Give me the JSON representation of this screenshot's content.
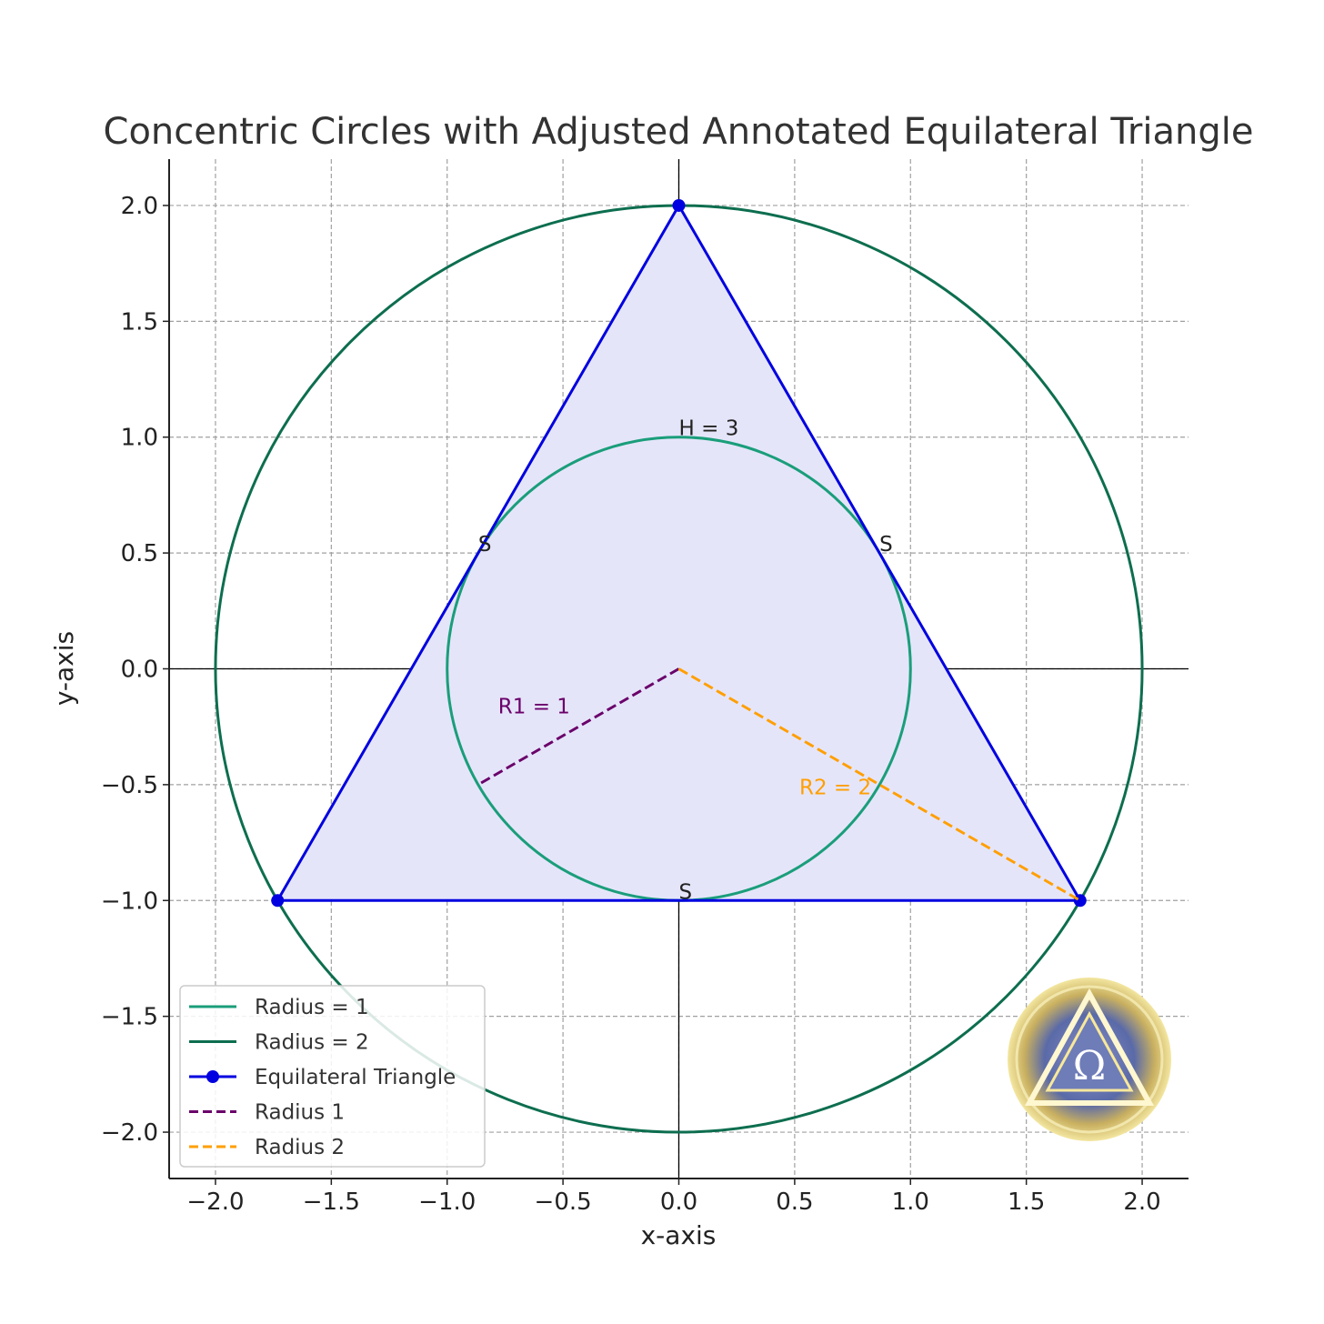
{
  "chart_data": {
    "type": "line",
    "title": "Concentric Circles with Adjusted Annotated Equilateral Triangle",
    "xlabel": "x-axis",
    "ylabel": "y-axis",
    "xlim": [
      -2.2,
      2.2
    ],
    "ylim": [
      -2.2,
      2.2
    ],
    "x_ticks": [
      -2.0,
      -1.5,
      -1.0,
      -0.5,
      0.0,
      0.5,
      1.0,
      1.5,
      2.0
    ],
    "y_ticks": [
      -2.0,
      -1.5,
      -1.0,
      -0.5,
      0.0,
      0.5,
      1.0,
      1.5,
      2.0
    ],
    "x_tick_labels": [
      "−2.0",
      "−1.5",
      "−1.0",
      "−0.5",
      "0.0",
      "0.5",
      "1.0",
      "1.5",
      "2.0"
    ],
    "y_tick_labels": [
      "−2.0",
      "−1.5",
      "−1.0",
      "−0.5",
      "0.0",
      "0.5",
      "1.0",
      "1.5",
      "2.0"
    ],
    "grid": true,
    "grid_style": "dashed",
    "legend_placement": "lower-left",
    "circles": [
      {
        "name": "Radius = 1",
        "center": [
          0,
          0
        ],
        "radius": 1,
        "color": "#1a9e7a"
      },
      {
        "name": "Radius = 2",
        "center": [
          0,
          0
        ],
        "radius": 2,
        "color": "#0d6e4f"
      }
    ],
    "triangle": {
      "name": "Equilateral Triangle",
      "vertices": [
        [
          0,
          2
        ],
        [
          -1.732,
          -1
        ],
        [
          1.732,
          -1
        ]
      ],
      "color": "#0000e0",
      "fill": "#e5e5fa"
    },
    "radius_lines": [
      {
        "name": "Radius 1",
        "from": [
          0,
          0
        ],
        "to": [
          -0.866,
          -0.5
        ],
        "color": "#6a006a"
      },
      {
        "name": "Radius 2",
        "from": [
          0,
          0
        ],
        "to": [
          1.732,
          -1
        ],
        "color": "#ff9f00"
      }
    ],
    "annotations": [
      {
        "text": "H = 3",
        "x": 0.0,
        "y": 1.0,
        "color": "#222222"
      },
      {
        "text": "S",
        "x": -0.866,
        "y": 0.5,
        "color": "#222222"
      },
      {
        "text": "S",
        "x": 0.866,
        "y": 0.5,
        "color": "#222222"
      },
      {
        "text": "S",
        "x": 0.0,
        "y": -1.0,
        "color": "#222222"
      },
      {
        "text": "R1 = 1",
        "x": -0.78,
        "y": -0.2,
        "color": "#6a006a"
      },
      {
        "text": "R2 = 2",
        "x": 0.52,
        "y": -0.55,
        "color": "#ff9f00"
      }
    ],
    "legend": [
      {
        "label": "Radius = 1",
        "color": "#1a9e7a",
        "style": "solid",
        "marker": false
      },
      {
        "label": "Radius = 2",
        "color": "#0d6e4f",
        "style": "solid",
        "marker": false
      },
      {
        "label": "Equilateral Triangle",
        "color": "#0000e0",
        "style": "solid",
        "marker": true
      },
      {
        "label": "Radius 1",
        "color": "#6a006a",
        "style": "dashed",
        "marker": false
      },
      {
        "label": "Radius 2",
        "color": "#ff9f00",
        "style": "dashed",
        "marker": false
      }
    ]
  },
  "watermark": {
    "glyph": "Ω",
    "icon": "omega-triangle-seal-icon"
  }
}
